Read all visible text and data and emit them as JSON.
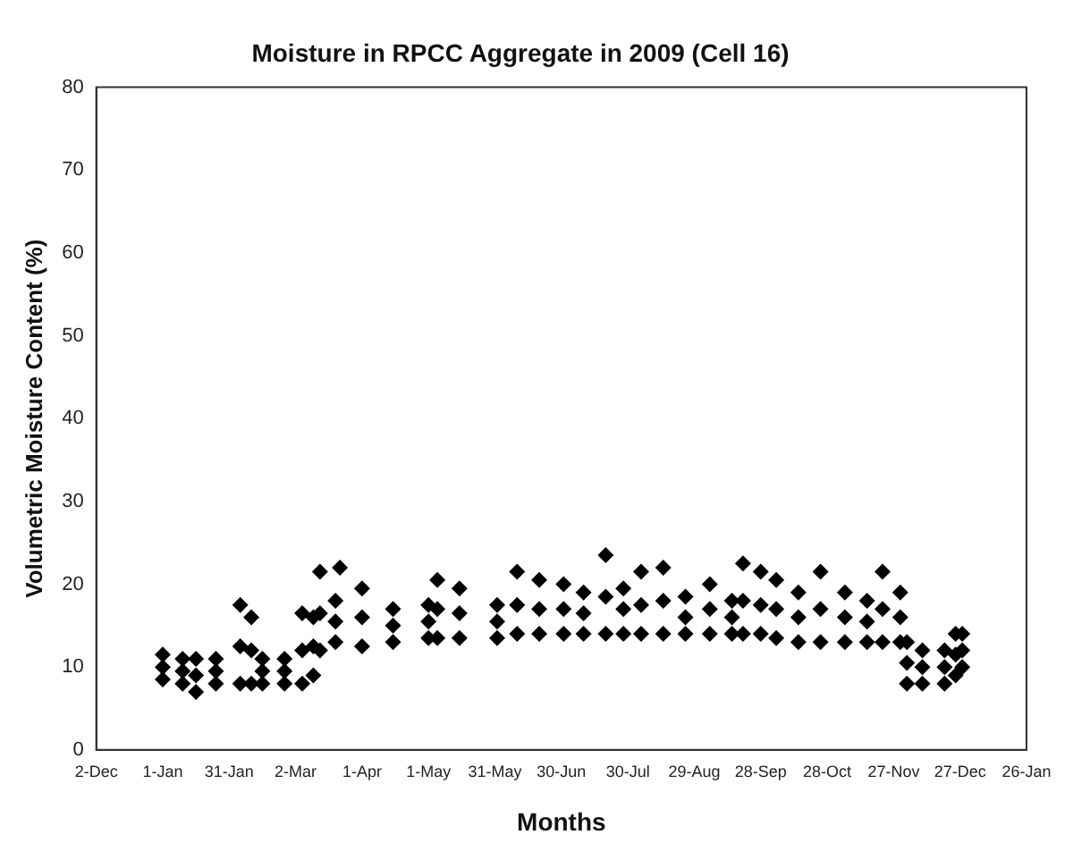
{
  "chart_data": {
    "type": "scatter",
    "title": "Moisture in RPCC Aggregate in 2009 (Cell 16)",
    "xlabel": "Months",
    "ylabel": "Volumetric Moisture Content (%)",
    "xlim": [
      "2008-12-02",
      "2010-01-26"
    ],
    "xticks": [
      {
        "value": "2008-12-02",
        "label": "2-Dec"
      },
      {
        "value": "2009-01-01",
        "label": "1-Jan"
      },
      {
        "value": "2009-01-31",
        "label": "31-Jan"
      },
      {
        "value": "2009-03-02",
        "label": "2-Mar"
      },
      {
        "value": "2009-04-01",
        "label": "1-Apr"
      },
      {
        "value": "2009-05-01",
        "label": "1-May"
      },
      {
        "value": "2009-05-31",
        "label": "31-May"
      },
      {
        "value": "2009-06-30",
        "label": "30-Jun"
      },
      {
        "value": "2009-07-30",
        "label": "30-Jul"
      },
      {
        "value": "2009-08-29",
        "label": "29-Aug"
      },
      {
        "value": "2009-09-28",
        "label": "28-Sep"
      },
      {
        "value": "2009-10-28",
        "label": "28-Oct"
      },
      {
        "value": "2009-11-27",
        "label": "27-Nov"
      },
      {
        "value": "2009-12-27",
        "label": "27-Dec"
      },
      {
        "value": "2010-01-26",
        "label": "26-Jan"
      }
    ],
    "ylim": [
      0,
      80
    ],
    "yticks": [
      0,
      10,
      20,
      30,
      40,
      50,
      60,
      70,
      80
    ],
    "grid": false,
    "legend": false,
    "marker": "diamond",
    "series": [
      {
        "color": "#000000",
        "x": [
          "2009-01-01",
          "2009-01-01",
          "2009-01-01",
          "2009-01-10",
          "2009-01-10",
          "2009-01-10",
          "2009-01-16",
          "2009-01-16",
          "2009-01-16",
          "2009-01-25",
          "2009-01-25",
          "2009-01-25",
          "2009-02-05",
          "2009-02-05",
          "2009-02-05",
          "2009-02-10",
          "2009-02-10",
          "2009-02-10",
          "2009-02-15",
          "2009-02-15",
          "2009-02-15",
          "2009-02-25",
          "2009-02-25",
          "2009-02-25",
          "2009-03-05",
          "2009-03-05",
          "2009-03-05",
          "2009-03-10",
          "2009-03-10",
          "2009-03-10",
          "2009-03-13",
          "2009-03-13",
          "2009-03-13",
          "2009-03-20",
          "2009-03-20",
          "2009-03-20",
          "2009-03-22",
          "2009-04-01",
          "2009-04-01",
          "2009-04-01",
          "2009-04-15",
          "2009-04-15",
          "2009-04-15",
          "2009-05-01",
          "2009-05-01",
          "2009-05-01",
          "2009-05-05",
          "2009-05-05",
          "2009-05-05",
          "2009-05-15",
          "2009-05-15",
          "2009-05-15",
          "2009-06-01",
          "2009-06-01",
          "2009-06-01",
          "2009-06-10",
          "2009-06-10",
          "2009-06-10",
          "2009-06-20",
          "2009-06-20",
          "2009-06-20",
          "2009-07-01",
          "2009-07-01",
          "2009-07-01",
          "2009-07-10",
          "2009-07-10",
          "2009-07-10",
          "2009-07-20",
          "2009-07-20",
          "2009-07-20",
          "2009-07-28",
          "2009-07-28",
          "2009-07-28",
          "2009-08-05",
          "2009-08-05",
          "2009-08-05",
          "2009-08-15",
          "2009-08-15",
          "2009-08-15",
          "2009-08-25",
          "2009-08-25",
          "2009-08-25",
          "2009-09-05",
          "2009-09-05",
          "2009-09-05",
          "2009-09-15",
          "2009-09-15",
          "2009-09-15",
          "2009-09-20",
          "2009-09-20",
          "2009-09-20",
          "2009-09-28",
          "2009-09-28",
          "2009-09-28",
          "2009-10-05",
          "2009-10-05",
          "2009-10-05",
          "2009-10-15",
          "2009-10-15",
          "2009-10-15",
          "2009-10-25",
          "2009-10-25",
          "2009-10-25",
          "2009-11-05",
          "2009-11-05",
          "2009-11-05",
          "2009-11-15",
          "2009-11-15",
          "2009-11-15",
          "2009-11-22",
          "2009-11-22",
          "2009-11-22",
          "2009-11-30",
          "2009-11-30",
          "2009-11-30",
          "2009-12-03",
          "2009-12-03",
          "2009-12-03",
          "2009-12-10",
          "2009-12-10",
          "2009-12-10",
          "2009-12-20",
          "2009-12-20",
          "2009-12-20",
          "2009-12-25",
          "2009-12-25",
          "2009-12-25",
          "2009-12-28",
          "2009-12-28",
          "2009-12-28"
        ],
        "values": [
          8.5,
          10,
          11.5,
          8,
          9.5,
          11,
          7,
          9,
          11,
          8,
          9.5,
          11,
          8,
          12.5,
          17.5,
          8,
          12,
          16,
          8,
          9.5,
          11,
          8,
          9.5,
          11,
          8,
          12,
          16.5,
          9,
          12.5,
          16,
          12,
          16.5,
          21.5,
          13,
          15.5,
          18,
          22,
          12.5,
          16,
          19.5,
          13,
          15,
          17,
          13.5,
          15.5,
          17.5,
          13.5,
          17,
          20.5,
          13.5,
          16.5,
          19.5,
          13.5,
          15.5,
          17.5,
          14,
          17.5,
          21.5,
          14,
          17,
          20.5,
          14,
          17,
          20,
          14,
          16.5,
          19,
          14,
          18.5,
          23.5,
          14,
          17,
          19.5,
          14,
          17.5,
          21.5,
          14,
          18,
          22,
          14,
          16,
          18.5,
          14,
          17,
          20,
          14,
          16,
          18,
          14,
          18,
          22.5,
          14,
          17.5,
          21.5,
          13.5,
          17,
          20.5,
          13,
          16,
          19,
          13,
          17,
          21.5,
          13,
          16,
          19,
          13,
          15.5,
          18,
          13,
          17,
          21.5,
          13,
          16,
          19,
          8,
          10.5,
          13,
          8,
          10,
          12,
          8,
          10,
          12,
          9,
          11.5,
          14,
          10,
          12,
          14
        ]
      }
    ]
  }
}
